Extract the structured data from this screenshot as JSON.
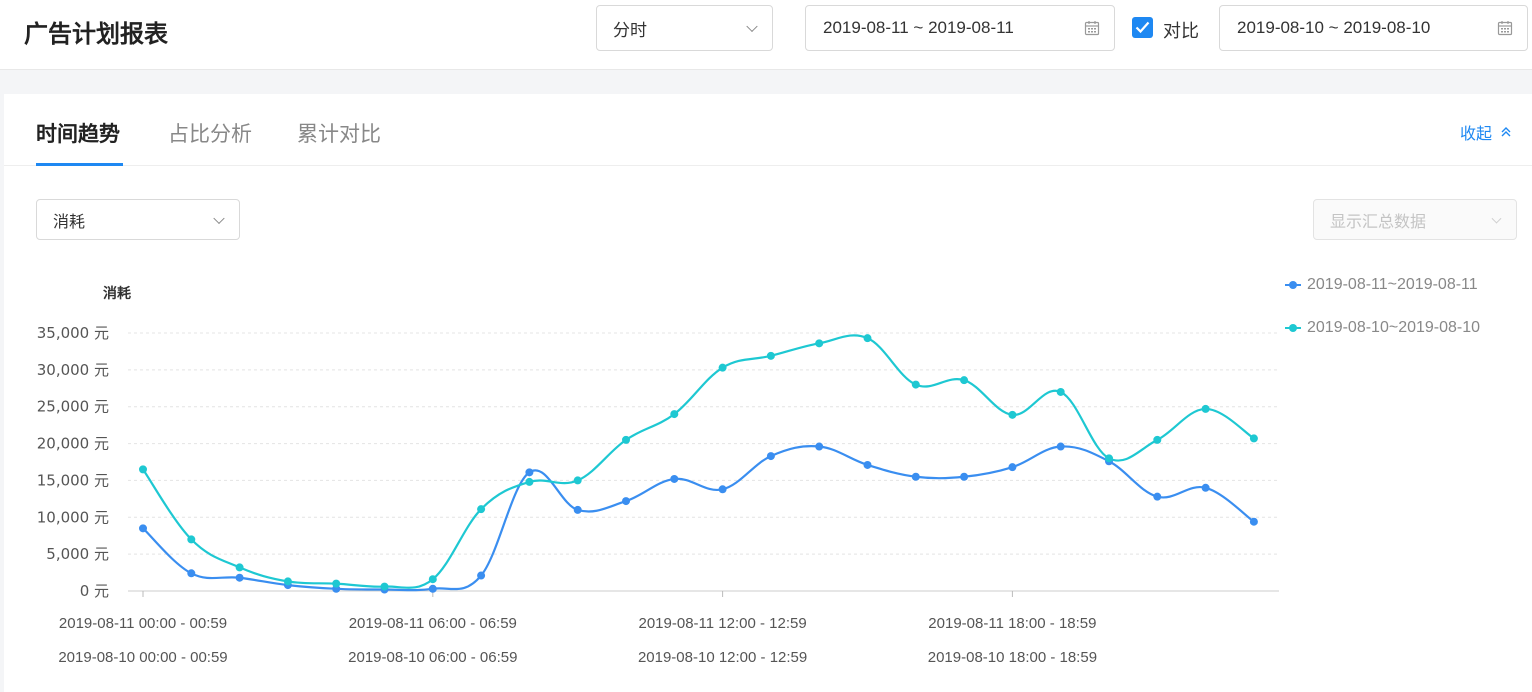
{
  "header": {
    "title": "广告计划报表",
    "granularity": "分时",
    "date_range": "2019-08-11 ~ 2019-08-11",
    "compare_checked": true,
    "compare_label": "对比",
    "compare_range": "2019-08-10 ~ 2019-08-10"
  },
  "tabs": [
    {
      "label": "时间趋势",
      "active": true
    },
    {
      "label": "占比分析",
      "active": false
    },
    {
      "label": "累计对比",
      "active": false
    }
  ],
  "collapse_label": "收起",
  "metric_select": "消耗",
  "summary_select_placeholder": "显示汇总数据",
  "colors": {
    "accent": "#1e88f2",
    "series1": "#3a8ef0",
    "series2": "#1ec8d2"
  },
  "chart_data": {
    "type": "line",
    "ylabel": "消耗",
    "y_unit": "元",
    "ylim": [
      0,
      35000
    ],
    "yticks": [
      "35,000 元",
      "30,000 元",
      "25,000 元",
      "20,000 元",
      "15,000 元",
      "10,000 元",
      "5,000 元",
      "0 元"
    ],
    "grid": true,
    "legend": "top-right",
    "x_tick_labels": [
      {
        "index": 0,
        "line1": "2019-08-11 00:00 - 00:59",
        "line2": "2019-08-10 00:00 - 00:59"
      },
      {
        "index": 6,
        "line1": "2019-08-11 06:00 - 06:59",
        "line2": "2019-08-10 06:00 - 06:59"
      },
      {
        "index": 12,
        "line1": "2019-08-11 12:00 - 12:59",
        "line2": "2019-08-10 12:00 - 12:59"
      },
      {
        "index": 18,
        "line1": "2019-08-11 18:00 - 18:59",
        "line2": "2019-08-10 18:00 - 18:59"
      }
    ],
    "series": [
      {
        "name": "2019-08-11~2019-08-11",
        "color": "#3a8ef0",
        "values": [
          8500,
          2400,
          1800,
          800,
          300,
          200,
          300,
          2100,
          16100,
          11000,
          12200,
          15200,
          13800,
          18300,
          19600,
          17100,
          15500,
          15500,
          16800,
          19600,
          17600,
          12800,
          14000,
          9400
        ]
      },
      {
        "name": "2019-08-10~2019-08-10",
        "color": "#1ec8d2",
        "values": [
          16500,
          7000,
          3200,
          1300,
          1000,
          600,
          1600,
          11100,
          14800,
          15000,
          20500,
          24000,
          30300,
          31900,
          33600,
          34300,
          28000,
          28600,
          23900,
          27000,
          18000,
          20500,
          24700,
          20700
        ]
      }
    ]
  }
}
